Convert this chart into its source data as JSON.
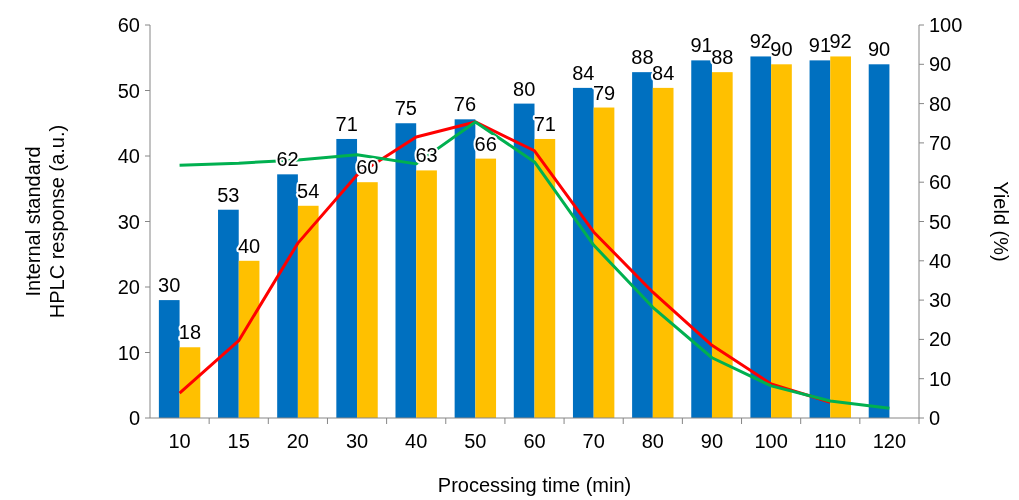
{
  "chart_data": {
    "type": "bar",
    "xlabel": "Processing time (min)",
    "ylabel": "Internal standard\nHPLC response (a.u.)",
    "y2label": "Yield (%)",
    "categories": [
      "10",
      "15",
      "20",
      "30",
      "40",
      "50",
      "60",
      "70",
      "80",
      "90",
      "100",
      "110",
      "120"
    ],
    "series": [
      {
        "color": "#0070c0",
        "axis": "y2",
        "values": [
          30,
          53,
          62,
          71,
          75,
          76,
          80,
          84,
          88,
          91,
          92,
          91,
          90
        ],
        "value_labels": [
          "30",
          "53",
          "62",
          "71",
          "75",
          "76",
          "80",
          "84",
          "88",
          "91",
          "92",
          "91",
          "90"
        ]
      },
      {
        "color": "#ffc000",
        "axis": "y2",
        "values": [
          18,
          40,
          54,
          60,
          63,
          66,
          71,
          79,
          84,
          88,
          90,
          92,
          null
        ],
        "value_labels": [
          "18",
          "40",
          "54",
          "60",
          "63",
          "66",
          "71",
          "79",
          "84",
          "88",
          "90",
          "92",
          null
        ]
      },
      {
        "type": "line",
        "color": "#ff0000",
        "values": [
          3.8,
          11.8,
          26.7,
          37.1,
          42.9,
          45.2,
          40.8,
          28.4,
          19.2,
          11.1,
          5.2,
          2.4,
          null
        ]
      },
      {
        "type": "line",
        "color": "#00b050",
        "values": [
          38.6,
          38.9,
          39.4,
          40.2,
          38.8,
          45.2,
          39.1,
          26.4,
          16.9,
          9.2,
          4.9,
          2.6,
          1.5
        ]
      }
    ],
    "ylim": [
      0,
      60
    ],
    "yticks": [
      0,
      10,
      20,
      30,
      40,
      50,
      60
    ],
    "y2lim": [
      0,
      100
    ],
    "y2ticks": [
      0,
      10,
      20,
      30,
      40,
      50,
      60,
      70,
      80,
      90,
      100
    ],
    "grid": false,
    "marker": "none",
    "line_style": "solid"
  }
}
